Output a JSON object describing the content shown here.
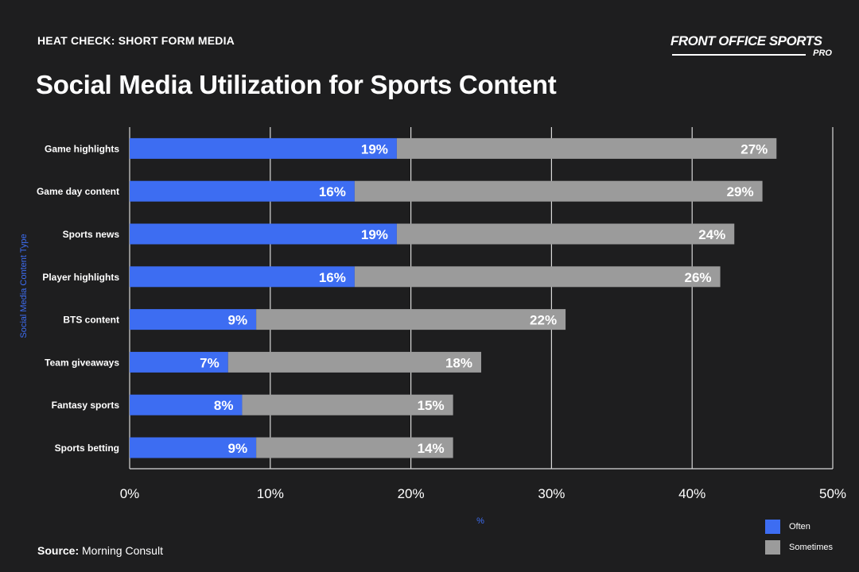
{
  "header": {
    "kicker": "HEAT CHECK: SHORT FORM MEDIA",
    "brand": "FRONT OFFICE SPORTS",
    "brand_sub": "PRO",
    "title": "Social Media Utilization for Sports Content"
  },
  "footer": {
    "source_label": "Source:",
    "source_value": "Morning Consult"
  },
  "colors": {
    "background": "#1e1e1f",
    "often": "#3d6df2",
    "sometimes": "#9b9b9b",
    "grid": "#d9d9d9",
    "axis_title": "#3d6df2"
  },
  "chart_data": {
    "type": "bar",
    "orientation": "horizontal",
    "stacked": true,
    "title": "Social Media Utilization for Sports Content",
    "xlabel": "%",
    "ylabel": "Social Media Content Type",
    "xlim": [
      0,
      50
    ],
    "xticks": [
      0,
      10,
      20,
      30,
      40,
      50
    ],
    "xtick_labels": [
      "0%",
      "10%",
      "20%",
      "30%",
      "40%",
      "50%"
    ],
    "grid": true,
    "legend_position": "bottom-right",
    "categories": [
      "Game highlights",
      "Game day content",
      "Sports news",
      "Player highlights",
      "BTS content",
      "Team giveaways",
      "Fantasy sports",
      "Sports betting"
    ],
    "series": [
      {
        "name": "Often",
        "color": "#3d6df2",
        "values": [
          19,
          16,
          19,
          16,
          9,
          7,
          8,
          9
        ],
        "labels": [
          "19%",
          "16%",
          "19%",
          "16%",
          "9%",
          "7%",
          "8%",
          "9%"
        ]
      },
      {
        "name": "Sometimes",
        "color": "#9b9b9b",
        "values": [
          27,
          29,
          24,
          26,
          22,
          18,
          15,
          14
        ],
        "labels": [
          "27%",
          "29%",
          "24%",
          "26%",
          "22%",
          "18%",
          "15%",
          "14%"
        ]
      }
    ]
  }
}
